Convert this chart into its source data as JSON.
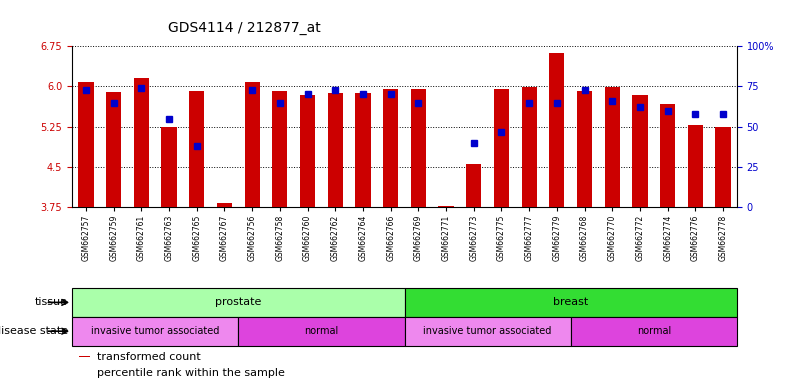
{
  "title": "GDS4114 / 212877_at",
  "samples": [
    "GSM662757",
    "GSM662759",
    "GSM662761",
    "GSM662763",
    "GSM662765",
    "GSM662767",
    "GSM662756",
    "GSM662758",
    "GSM662760",
    "GSM662762",
    "GSM662764",
    "GSM662766",
    "GSM662769",
    "GSM662771",
    "GSM662773",
    "GSM662775",
    "GSM662777",
    "GSM662779",
    "GSM662768",
    "GSM662770",
    "GSM662772",
    "GSM662774",
    "GSM662776",
    "GSM662778"
  ],
  "bar_values": [
    6.08,
    5.9,
    6.15,
    5.25,
    5.92,
    3.83,
    6.08,
    5.91,
    5.84,
    5.87,
    5.87,
    5.96,
    5.96,
    3.78,
    4.55,
    5.96,
    5.98,
    6.62,
    5.91,
    5.98,
    5.84,
    5.68,
    5.28,
    5.25
  ],
  "dot_percentiles": [
    73,
    65,
    74,
    55,
    38,
    null,
    73,
    65,
    70,
    73,
    70,
    70,
    65,
    null,
    40,
    47,
    65,
    65,
    73,
    66,
    62,
    60,
    58,
    58
  ],
  "ylim_left": [
    3.75,
    6.75
  ],
  "ylim_right": [
    0,
    100
  ],
  "yticks_left": [
    3.75,
    4.5,
    5.25,
    6.0,
    6.75
  ],
  "yticks_right": [
    0,
    25,
    50,
    75,
    100
  ],
  "bar_color": "#CC0000",
  "dot_color": "#0000CC",
  "tissue_groups": [
    {
      "label": "prostate",
      "start": 0,
      "end": 12,
      "color": "#AAFFAA"
    },
    {
      "label": "breast",
      "start": 12,
      "end": 24,
      "color": "#33DD33"
    }
  ],
  "disease_groups": [
    {
      "label": "invasive tumor associated",
      "start": 0,
      "end": 6,
      "color": "#EE88EE"
    },
    {
      "label": "normal",
      "start": 6,
      "end": 12,
      "color": "#DD44DD"
    },
    {
      "label": "invasive tumor associated",
      "start": 12,
      "end": 18,
      "color": "#EE88EE"
    },
    {
      "label": "normal",
      "start": 18,
      "end": 24,
      "color": "#DD44DD"
    }
  ],
  "legend_items": [
    {
      "label": "transformed count",
      "color": "#CC0000"
    },
    {
      "label": "percentile rank within the sample",
      "color": "#0000CC"
    }
  ],
  "tissue_label": "tissue",
  "disease_label": "disease state",
  "title_fontsize": 10,
  "tick_fontsize": 7,
  "label_fontsize": 8
}
